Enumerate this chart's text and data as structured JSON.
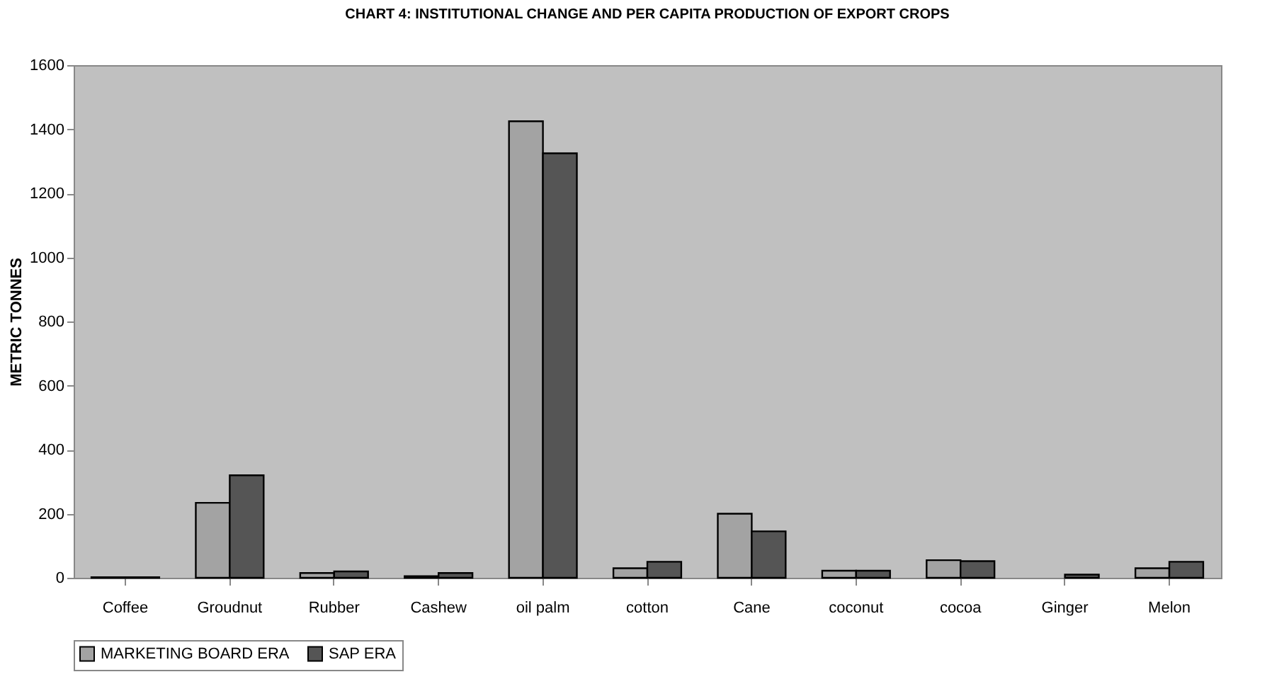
{
  "chart_data": {
    "type": "bar",
    "title": "CHART 4: INSTITUTIONAL CHANGE AND PER CAPITA PRODUCTION OF EXPORT CROPS",
    "ylabel": "METRIC TONNES",
    "categories": [
      "Coffee",
      "Groudnut",
      "Rubber",
      "Cashew",
      "oil palm",
      "cotton",
      "Cane",
      "coconut",
      "cocoa",
      "Ginger",
      "Melon"
    ],
    "series": [
      {
        "name": "MARKETING BOARD ERA",
        "color": "#a3a3a3",
        "values": [
          2,
          234,
          15,
          5,
          1425,
          30,
          200,
          22,
          55,
          null,
          30
        ]
      },
      {
        "name": "SAP ERA",
        "color": "#555555",
        "values": [
          2,
          320,
          20,
          15,
          1325,
          50,
          145,
          22,
          52,
          10,
          50
        ]
      }
    ],
    "ylim": [
      0,
      1600
    ],
    "yticks": [
      0,
      200,
      400,
      600,
      800,
      1000,
      1200,
      1400,
      1600
    ],
    "grid": false,
    "legend": "bottom"
  }
}
